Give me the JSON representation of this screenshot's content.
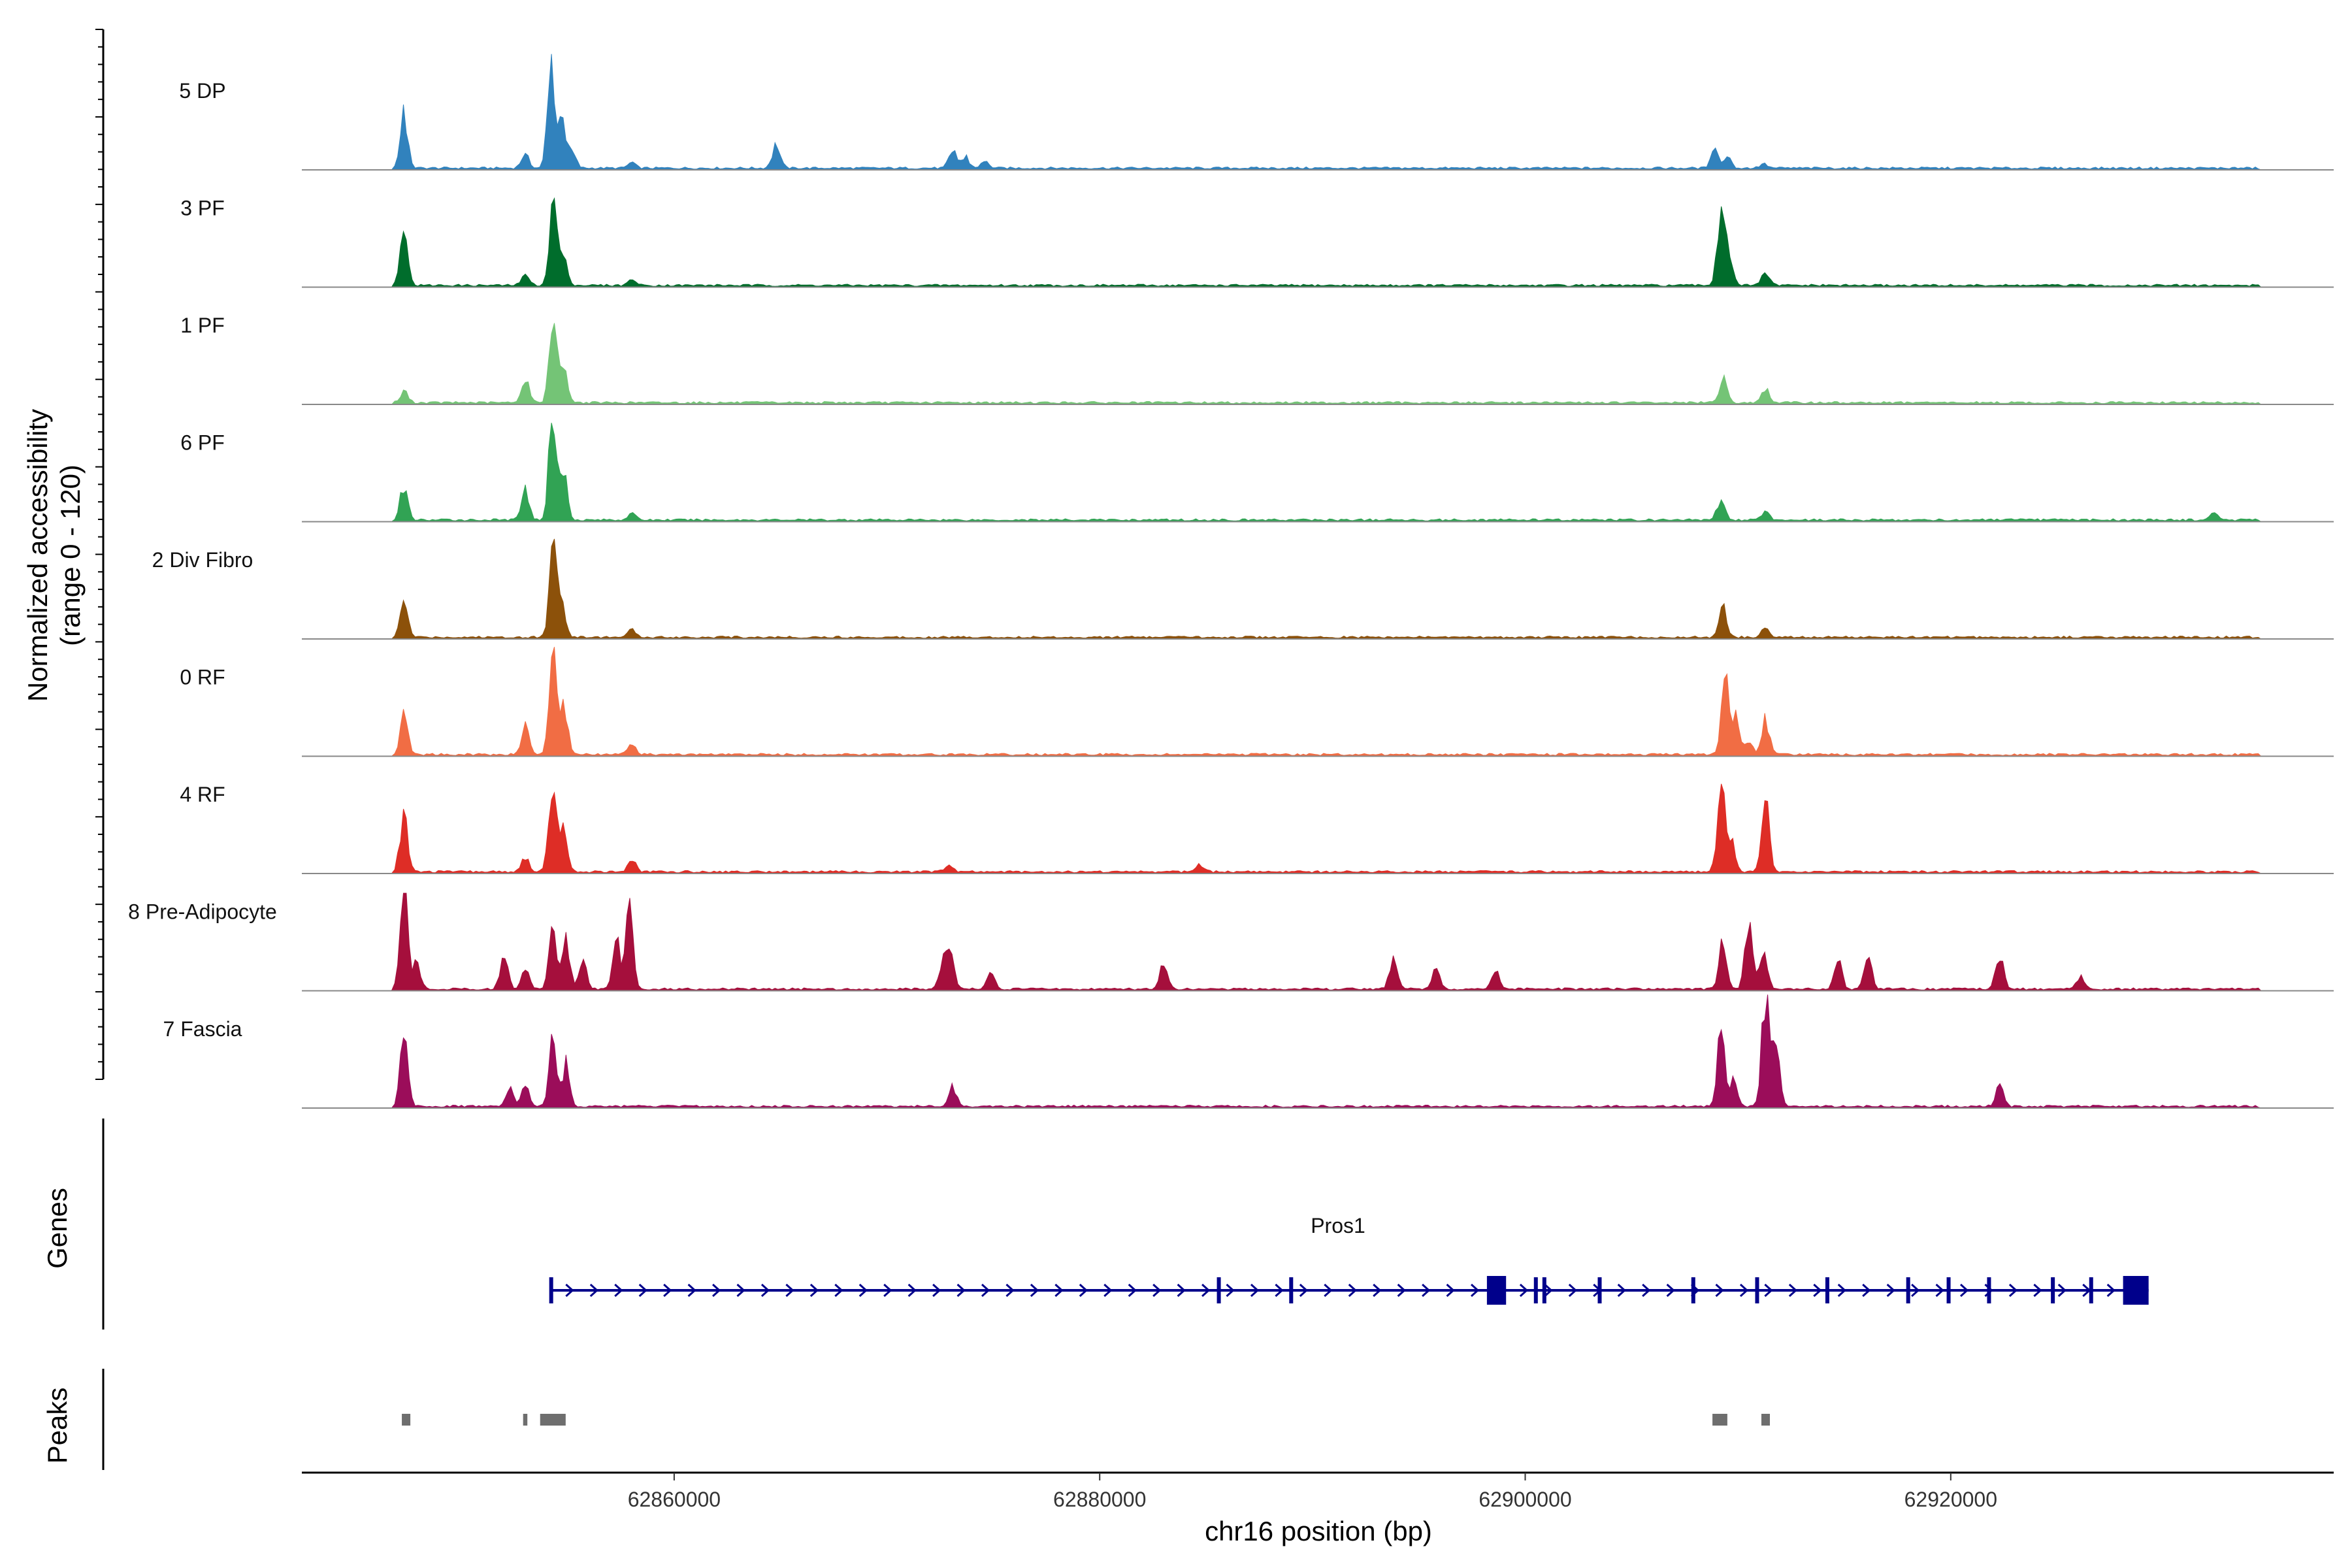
{
  "chart_data": {
    "type": "area",
    "chromosome": "chr16",
    "xlabel": "chr16 position (bp)",
    "ylabel": "Normalized accessibility",
    "ylabel_range": "(range 0 - 120)",
    "ylim": [
      0,
      120
    ],
    "xlim": [
      62842500,
      62938000
    ],
    "x_ticks": [
      62860000,
      62880000,
      62900000,
      62920000
    ],
    "x_tick_labels": [
      "62860000",
      "62880000",
      "62900000",
      "62920000"
    ],
    "series": [
      {
        "name": "5 DP",
        "color": "#3182bd",
        "peaks": [
          [
            62847300,
            40
          ],
          [
            62853000,
            10
          ],
          [
            62854200,
            68
          ],
          [
            62854700,
            42
          ],
          [
            62855200,
            12
          ],
          [
            62858000,
            5
          ],
          [
            62864800,
            18
          ],
          [
            62873100,
            14
          ],
          [
            62873700,
            8
          ],
          [
            62874600,
            5
          ],
          [
            62908900,
            14
          ],
          [
            62909500,
            8
          ],
          [
            62911200,
            3
          ]
        ]
      },
      {
        "name": "3 PF",
        "color": "#006d2c",
        "peaks": [
          [
            62847300,
            38
          ],
          [
            62853000,
            8
          ],
          [
            62854300,
            62
          ],
          [
            62854800,
            25
          ],
          [
            62858000,
            4
          ],
          [
            62909200,
            50
          ],
          [
            62909600,
            22
          ],
          [
            62911300,
            10
          ]
        ]
      },
      {
        "name": "1 PF",
        "color": "#74c476",
        "peaks": [
          [
            62847300,
            8
          ],
          [
            62853000,
            18
          ],
          [
            62854300,
            65
          ],
          [
            62854800,
            30
          ],
          [
            62909300,
            18
          ],
          [
            62911300,
            10
          ]
        ]
      },
      {
        "name": "6 PF",
        "color": "#31a354",
        "peaks": [
          [
            62847300,
            25
          ],
          [
            62853000,
            22
          ],
          [
            62854300,
            80
          ],
          [
            62854800,
            35
          ],
          [
            62858000,
            6
          ],
          [
            62909200,
            16
          ],
          [
            62911300,
            6
          ],
          [
            62932400,
            5
          ]
        ]
      },
      {
        "name": "2 Div Fibro",
        "color": "#8c510a",
        "peaks": [
          [
            62847300,
            25
          ],
          [
            62854300,
            65
          ],
          [
            62854700,
            30
          ],
          [
            62858000,
            5
          ],
          [
            62909300,
            22
          ],
          [
            62911300,
            8
          ]
        ]
      },
      {
        "name": "0 RF",
        "color": "#f16d44",
        "peaks": [
          [
            62847300,
            28
          ],
          [
            62853000,
            22
          ],
          [
            62854300,
            80
          ],
          [
            62854800,
            40
          ],
          [
            62858000,
            8
          ],
          [
            62909400,
            52
          ],
          [
            62909900,
            30
          ],
          [
            62910500,
            10
          ],
          [
            62911300,
            25
          ]
        ]
      },
      {
        "name": "4 RF",
        "color": "#de2d26",
        "peaks": [
          [
            62847300,
            45
          ],
          [
            62853000,
            10
          ],
          [
            62854300,
            70
          ],
          [
            62854800,
            30
          ],
          [
            62858000,
            10
          ],
          [
            62872900,
            5
          ],
          [
            62884700,
            6
          ],
          [
            62909200,
            62
          ],
          [
            62909700,
            24
          ],
          [
            62911300,
            50
          ]
        ]
      },
      {
        "name": "8 Pre-Adipocyte",
        "color": "#a50f3c",
        "peaks": [
          [
            62847300,
            70
          ],
          [
            62847900,
            20
          ],
          [
            62852000,
            25
          ],
          [
            62853000,
            15
          ],
          [
            62854300,
            45
          ],
          [
            62854900,
            40
          ],
          [
            62855700,
            20
          ],
          [
            62857300,
            35
          ],
          [
            62857900,
            55
          ],
          [
            62873000,
            25
          ],
          [
            62872600,
            18
          ],
          [
            62874900,
            12
          ],
          [
            62883000,
            20
          ],
          [
            62893800,
            22
          ],
          [
            62895800,
            16
          ],
          [
            62898600,
            14
          ],
          [
            62909300,
            35
          ],
          [
            62910500,
            45
          ],
          [
            62911200,
            30
          ],
          [
            62914700,
            22
          ],
          [
            62916100,
            28
          ],
          [
            62922300,
            28
          ],
          [
            62926100,
            8
          ]
        ]
      },
      {
        "name": "7 Fascia",
        "color": "#9b0d5a",
        "peaks": [
          [
            62847300,
            48
          ],
          [
            62853000,
            15
          ],
          [
            62854300,
            55
          ],
          [
            62854900,
            30
          ],
          [
            62852300,
            12
          ],
          [
            62873100,
            14
          ],
          [
            62909200,
            52
          ],
          [
            62909800,
            22
          ],
          [
            62911300,
            82
          ],
          [
            62911800,
            40
          ],
          [
            62922300,
            16
          ]
        ]
      }
    ],
    "gene": {
      "name": "Pros1",
      "strand": "+",
      "start": 62854200,
      "end": 62929300,
      "exons": [
        62854220,
        62885600,
        62889000,
        62898700,
        62900500,
        62900900,
        62903500,
        62907900,
        62910900,
        62914200,
        62918000,
        62919900,
        62921800,
        62924800,
        62926600
      ],
      "utr_start_block": [
        62898200,
        62899100
      ],
      "utr_end_block": [
        62928100,
        62929300
      ]
    },
    "peaks_track": [
      [
        62847200,
        62847600
      ],
      [
        62852900,
        62853100
      ],
      [
        62853700,
        62854900
      ],
      [
        62908800,
        62909500
      ],
      [
        62911100,
        62911500
      ]
    ]
  },
  "tracks": {
    "genes_label": "Genes",
    "peaks_label": "Peaks"
  },
  "colors": {
    "gene": "#00008b",
    "peak": "#6e6e6e",
    "baseline": "#888888"
  }
}
